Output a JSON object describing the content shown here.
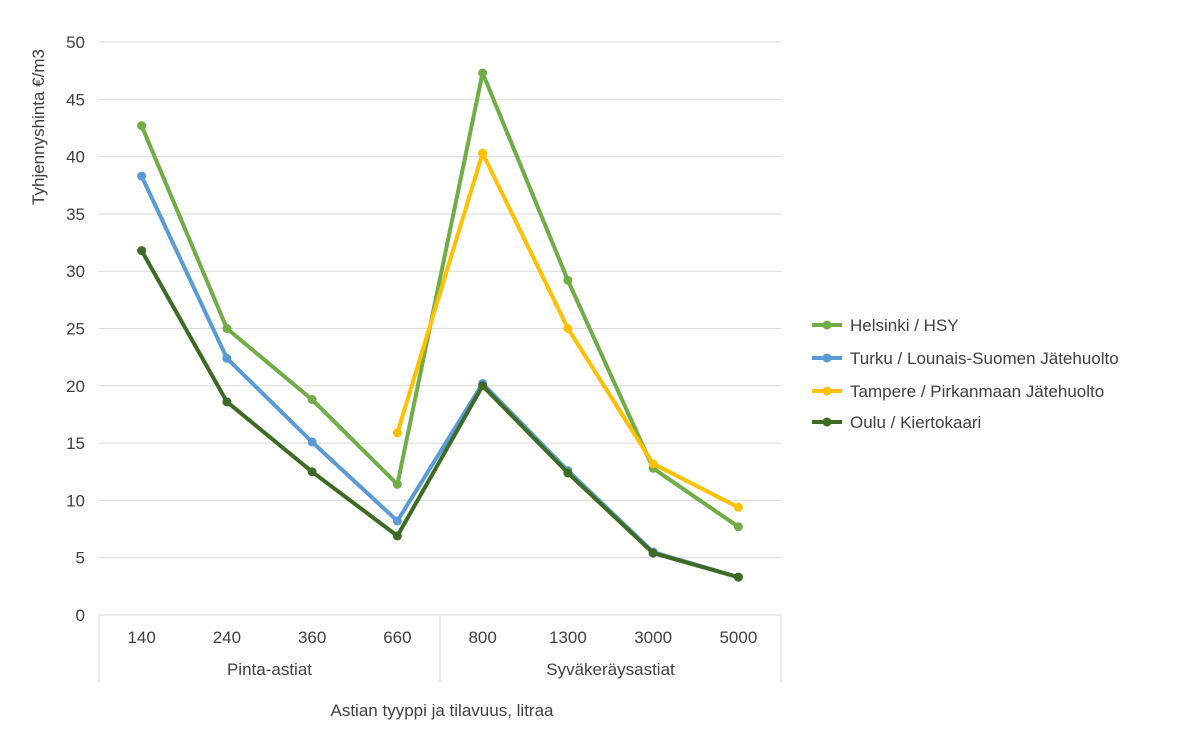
{
  "chart_data": {
    "type": "line",
    "title": "",
    "ylabel": "Tyhjennyshinta €/m3",
    "xlabel": "Astian tyyppi ja tilavuus, litraa",
    "ylim": [
      0,
      50
    ],
    "yticks": [
      0,
      5,
      10,
      15,
      20,
      25,
      30,
      35,
      40,
      45,
      50
    ],
    "categories": [
      "140",
      "240",
      "360",
      "660",
      "800",
      "1300",
      "3000",
      "5000"
    ],
    "groups": [
      {
        "label": "Pinta-astiat",
        "span": [
          0,
          3
        ]
      },
      {
        "label": "Syväkeräysastiat",
        "span": [
          4,
          7
        ]
      }
    ],
    "legend_position": "right",
    "series": [
      {
        "name": "Helsinki / HSY",
        "color": "#70AD47",
        "values": [
          42.7,
          25.0,
          18.8,
          11.4,
          47.3,
          29.2,
          12.8,
          7.7
        ]
      },
      {
        "name": "Turku / Lounais-Suomen Jätehuolto",
        "color": "#5B9BD5",
        "values": [
          38.3,
          22.4,
          15.1,
          8.2,
          20.2,
          12.6,
          5.5,
          3.3
        ]
      },
      {
        "name": "Tampere / Pirkanmaan Jätehuolto",
        "color": "#FFC000",
        "values": [
          null,
          null,
          null,
          15.9,
          40.3,
          25.0,
          13.2,
          9.4
        ]
      },
      {
        "name": "Oulu / Kiertokaari",
        "color": "#3E6B23",
        "values": [
          31.8,
          18.6,
          12.5,
          6.9,
          20.0,
          12.4,
          5.4,
          3.3
        ]
      }
    ]
  }
}
